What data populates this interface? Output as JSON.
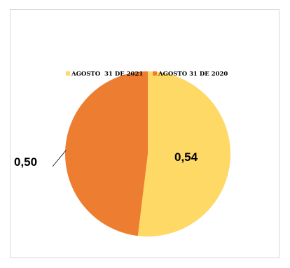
{
  "chart_data": {
    "type": "pie",
    "title": "",
    "legend_position": "top",
    "series": [
      {
        "name": "AGOSTO  31 DE 2021",
        "value": 0.54,
        "label": "0,54",
        "color": "#FFD966"
      },
      {
        "name": "AGOSTO 31 DE 2020",
        "value": 0.5,
        "label": "0,50",
        "color": "#ED7D31"
      }
    ]
  }
}
